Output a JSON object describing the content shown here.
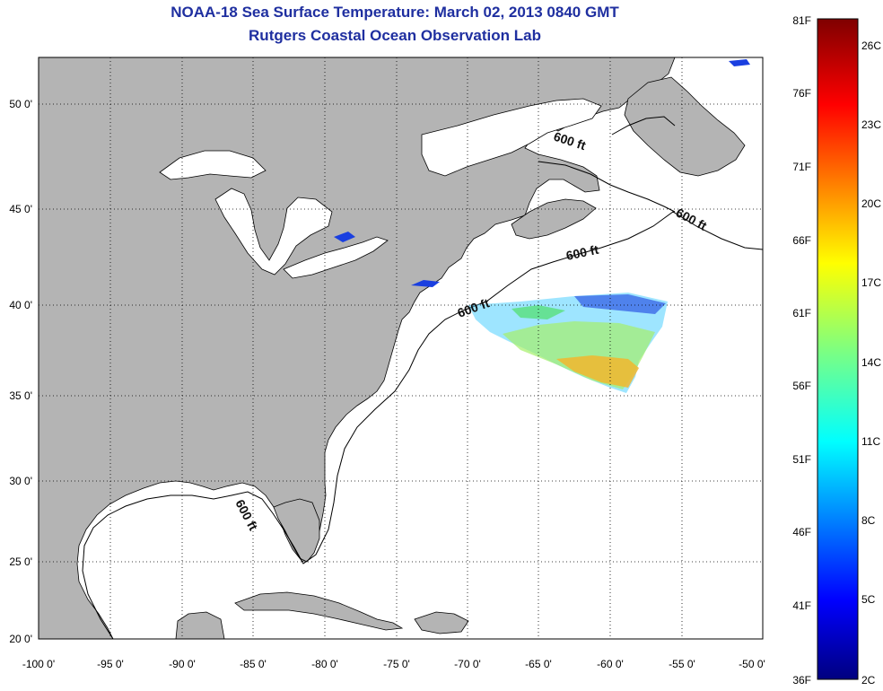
{
  "title": "NOAA-18 Sea Surface Temperature:  March 02, 2013 0840 GMT",
  "subtitle": "Rutgers Coastal Ocean Observation Lab",
  "map": {
    "lon_ticks": [
      "-100 0'",
      "-95 0'",
      "-90 0'",
      "-85 0'",
      "-80 0'",
      "-75 0'",
      "-70 0'",
      "-65 0'",
      "-60 0'",
      "-55 0'",
      "-50 0'"
    ],
    "lat_ticks": [
      "50 0'",
      "45 0'",
      "40 0'",
      "35 0'",
      "30 0'",
      "25 0'",
      "20 0'"
    ],
    "contour_label": "600 ft",
    "colors": {
      "land": "#b4b4b4",
      "ocean": "#ffffff",
      "coast": "#000000",
      "grid": "#000000"
    }
  },
  "colorbar": {
    "fahrenheit": [
      "81F",
      "76F",
      "71F",
      "66F",
      "61F",
      "56F",
      "51F",
      "46F",
      "41F",
      "36F"
    ],
    "celsius": [
      "26C",
      "23C",
      "20C",
      "17C",
      "14C",
      "11C",
      "8C",
      "5C",
      "2C"
    ]
  }
}
